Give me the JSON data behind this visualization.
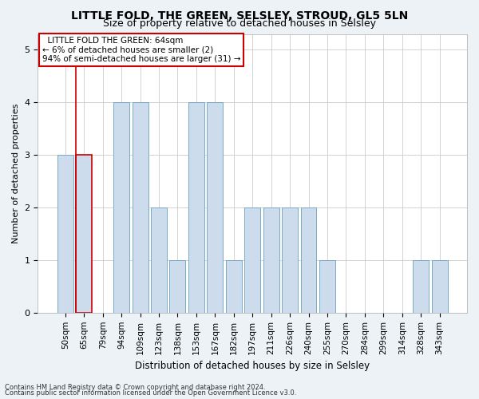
{
  "title": "LITTLE FOLD, THE GREEN, SELSLEY, STROUD, GL5 5LN",
  "subtitle": "Size of property relative to detached houses in Selsley",
  "xlabel": "Distribution of detached houses by size in Selsley",
  "ylabel": "Number of detached properties",
  "categories": [
    "50sqm",
    "65sqm",
    "79sqm",
    "94sqm",
    "109sqm",
    "123sqm",
    "138sqm",
    "153sqm",
    "167sqm",
    "182sqm",
    "197sqm",
    "211sqm",
    "226sqm",
    "240sqm",
    "255sqm",
    "270sqm",
    "284sqm",
    "299sqm",
    "314sqm",
    "328sqm",
    "343sqm"
  ],
  "values": [
    3,
    3,
    0,
    4,
    4,
    2,
    1,
    4,
    4,
    1,
    2,
    2,
    2,
    2,
    1,
    0,
    0,
    0,
    0,
    1,
    1
  ],
  "bar_color": "#ccdcec",
  "bar_edge_color": "#7aaac8",
  "highlight_bar_index": 1,
  "highlight_edge_color": "#cc0000",
  "annotation_text": "  LITTLE FOLD THE GREEN: 64sqm\n← 6% of detached houses are smaller (2)\n94% of semi-detached houses are larger (31) →",
  "annotation_box_edge_color": "#cc0000",
  "ylim": [
    0,
    5.3
  ],
  "yticks": [
    0,
    1,
    2,
    3,
    4,
    5
  ],
  "footer_line1": "Contains HM Land Registry data © Crown copyright and database right 2024.",
  "footer_line2": "Contains public sector information licensed under the Open Government Licence v3.0.",
  "bg_color": "#edf2f7",
  "plot_bg_color": "#ffffff",
  "grid_color": "#cccccc",
  "title_fontsize": 10,
  "subtitle_fontsize": 9,
  "xlabel_fontsize": 8.5,
  "ylabel_fontsize": 8,
  "tick_fontsize": 7.5,
  "annotation_fontsize": 7.5,
  "footer_fontsize": 6
}
